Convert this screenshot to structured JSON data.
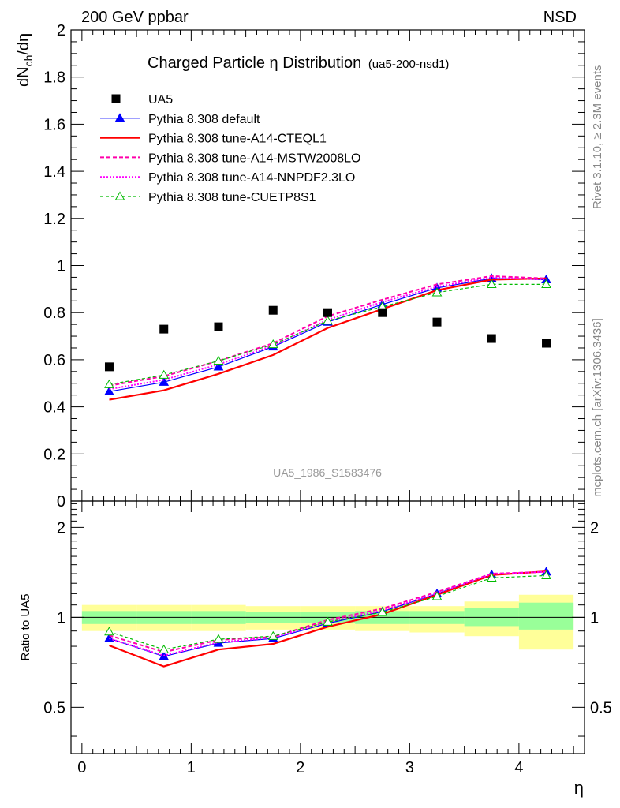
{
  "header": {
    "left": "200 GeV ppbar",
    "right": "NSD"
  },
  "side_labels": {
    "rivet": "Rivet 3.1.10, ≥ 2.3M events",
    "mcplots": "mcplots.cern.ch [arXiv:1306.3436]"
  },
  "colors": {
    "data": "#000000",
    "default": "#0000ff",
    "a14_cteql1": "#ff0000",
    "a14_mstw": "#ff00aa",
    "a14_nnpdf": "#ff00ff",
    "cuetp8s1": "#00bb00",
    "band_inner": "#99ff99",
    "band_outer": "#ffff99"
  },
  "chart_data": [
    {
      "type": "line",
      "title": "Charged Particle η Distribution",
      "title_suffix": "(ua5-200-nsd1)",
      "ylabel": "dN_ch/dη",
      "ylim": [
        0,
        2
      ],
      "xlim": [
        -0.1,
        4.6
      ],
      "yticks": [
        0,
        0.2,
        0.4,
        0.6,
        0.8,
        1,
        1.2,
        1.4,
        1.6,
        1.8,
        2
      ],
      "ytick_labels": [
        "0",
        "0.2",
        "0.4",
        "0.6",
        "0.8",
        "1",
        "1.2",
        "1.4",
        "1.6",
        "1.8",
        "2"
      ],
      "watermark": "UA5_1986_S1583476",
      "legend_position": "top-left",
      "x": [
        0.25,
        0.75,
        1.25,
        1.75,
        2.25,
        2.75,
        3.25,
        3.75,
        4.25
      ],
      "data": {
        "name": "UA5",
        "values": [
          0.57,
          0.73,
          0.74,
          0.81,
          0.8,
          0.8,
          0.76,
          0.69,
          0.67
        ]
      },
      "series": [
        {
          "name": "Pythia 8.308 default",
          "key": "default",
          "values": [
            0.465,
            0.505,
            0.57,
            0.655,
            0.76,
            0.835,
            0.905,
            0.945,
            0.94
          ]
        },
        {
          "name": "Pythia 8.308 tune-A14-CTEQL1",
          "key": "a14_cteql1",
          "values": [
            0.43,
            0.47,
            0.54,
            0.62,
            0.735,
            0.815,
            0.895,
            0.94,
            0.945
          ]
        },
        {
          "name": "Pythia 8.308 tune-A14-MSTW2008LO",
          "key": "a14_mstw",
          "values": [
            0.49,
            0.53,
            0.595,
            0.67,
            0.785,
            0.855,
            0.92,
            0.955,
            0.945
          ]
        },
        {
          "name": "Pythia 8.308 tune-A14-NNPDF2.3LO",
          "key": "a14_nnpdf",
          "values": [
            0.475,
            0.515,
            0.58,
            0.66,
            0.77,
            0.845,
            0.91,
            0.95,
            0.94
          ]
        },
        {
          "name": "Pythia 8.308 tune-CUETP8S1",
          "key": "cuetp8s1",
          "values": [
            0.495,
            0.535,
            0.595,
            0.665,
            0.765,
            0.825,
            0.885,
            0.92,
            0.92
          ]
        }
      ]
    },
    {
      "type": "line",
      "ylabel": "Ratio to UA5",
      "xlabel": "η",
      "ylog": true,
      "ylim": [
        0.35,
        2.45
      ],
      "xlim": [
        -0.1,
        4.6
      ],
      "yticks": [
        0.5,
        1,
        2
      ],
      "ytick_labels": [
        "0.5",
        "1",
        "2"
      ],
      "xticks": [
        0,
        1,
        2,
        3,
        4
      ],
      "xtick_labels": [
        "0",
        "1",
        "2",
        "3",
        "4"
      ],
      "band": {
        "edges": [
          0,
          0.5,
          1,
          1.5,
          2,
          2.5,
          3,
          3.5,
          4,
          4.5
        ],
        "inner": [
          [
            0.95,
            1.05
          ],
          [
            0.95,
            1.05
          ],
          [
            0.95,
            1.05
          ],
          [
            0.955,
            1.045
          ],
          [
            0.955,
            1.045
          ],
          [
            0.95,
            1.05
          ],
          [
            0.95,
            1.05
          ],
          [
            0.935,
            1.075
          ],
          [
            0.91,
            1.12
          ]
        ],
        "outer": [
          [
            0.9,
            1.1
          ],
          [
            0.9,
            1.1
          ],
          [
            0.9,
            1.1
          ],
          [
            0.91,
            1.09
          ],
          [
            0.91,
            1.09
          ],
          [
            0.9,
            1.09
          ],
          [
            0.89,
            1.09
          ],
          [
            0.865,
            1.13
          ],
          [
            0.78,
            1.19
          ]
        ]
      },
      "series": [
        {
          "name": "Pythia 8.308 default",
          "key": "default",
          "values": [
            0.85,
            0.74,
            0.82,
            0.85,
            0.955,
            1.045,
            1.2,
            1.39,
            1.42
          ]
        },
        {
          "name": "Pythia 8.308 tune-A14-CTEQL1",
          "key": "a14_cteql1",
          "values": [
            0.805,
            0.685,
            0.78,
            0.815,
            0.93,
            1.025,
            1.19,
            1.385,
            1.425
          ]
        },
        {
          "name": "Pythia 8.308 tune-A14-MSTW2008LO",
          "key": "a14_mstw",
          "values": [
            0.87,
            0.765,
            0.84,
            0.86,
            0.98,
            1.07,
            1.215,
            1.4,
            1.42
          ]
        },
        {
          "name": "Pythia 8.308 tune-A14-NNPDF2.3LO",
          "key": "a14_nnpdf",
          "values": [
            0.85,
            0.745,
            0.825,
            0.855,
            0.965,
            1.055,
            1.205,
            1.395,
            1.42
          ]
        },
        {
          "name": "Pythia 8.308 tune-CUETP8S1",
          "key": "cuetp8s1",
          "values": [
            0.895,
            0.78,
            0.845,
            0.865,
            0.965,
            1.04,
            1.175,
            1.355,
            1.38
          ]
        }
      ]
    }
  ]
}
